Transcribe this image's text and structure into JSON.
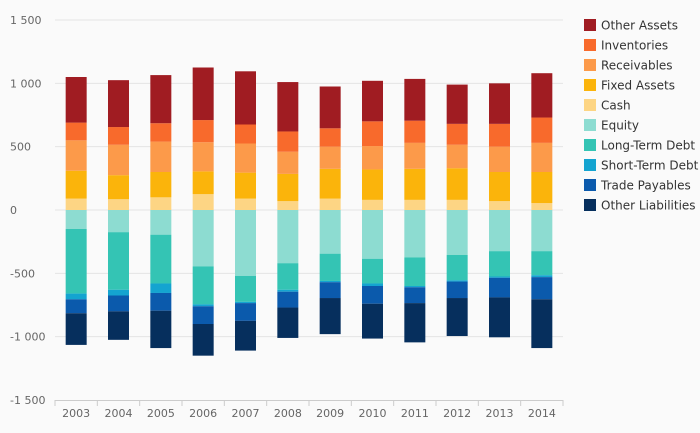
{
  "chart_data": {
    "type": "bar",
    "stacked": true,
    "categories": [
      "2003",
      "2004",
      "2005",
      "2006",
      "2007",
      "2008",
      "2009",
      "2010",
      "2011",
      "2012",
      "2013",
      "2014"
    ],
    "ylim": [
      -1500,
      1500
    ],
    "yticks": [
      -1500,
      -1000,
      -500,
      0,
      500,
      1000,
      1500
    ],
    "ytick_labels": [
      "-1 500",
      "-1 000",
      "-500",
      "0",
      "500",
      "1 000",
      "1 500"
    ],
    "grid": true,
    "legend_position": "right",
    "series": [
      {
        "name": "Other Assets",
        "color": "#a01c22",
        "side": "positive",
        "values": [
          360,
          370,
          380,
          415,
          420,
          390,
          330,
          320,
          330,
          310,
          320,
          350
        ]
      },
      {
        "name": "Inventories",
        "color": "#f86a2c",
        "side": "positive",
        "values": [
          140,
          140,
          145,
          175,
          150,
          160,
          145,
          195,
          175,
          165,
          180,
          200
        ]
      },
      {
        "name": "Receivables",
        "color": "#fc9a4a",
        "side": "positive",
        "values": [
          240,
          240,
          240,
          230,
          230,
          175,
          175,
          185,
          205,
          185,
          200,
          230
        ]
      },
      {
        "name": "Fixed Assets",
        "color": "#fbb40b",
        "side": "positive",
        "values": [
          220,
          190,
          200,
          180,
          205,
          215,
          235,
          240,
          245,
          250,
          230,
          245
        ]
      },
      {
        "name": "Cash",
        "color": "#fdd584",
        "side": "positive",
        "values": [
          90,
          85,
          100,
          125,
          90,
          70,
          90,
          80,
          80,
          80,
          70,
          55
        ]
      },
      {
        "name": "Equity",
        "color": "#8ddcd1",
        "side": "negative",
        "values": [
          150,
          175,
          195,
          445,
          520,
          420,
          345,
          385,
          375,
          355,
          325,
          325
        ]
      },
      {
        "name": "Long-Term Debt",
        "color": "#34c4b4",
        "side": "negative",
        "values": [
          510,
          455,
          385,
          300,
          205,
          210,
          215,
          195,
          225,
          200,
          200,
          190
        ]
      },
      {
        "name": "Short-Term Debt",
        "color": "#14a4d0",
        "side": "negative",
        "values": [
          45,
          45,
          75,
          15,
          10,
          15,
          10,
          20,
          10,
          10,
          10,
          15
        ]
      },
      {
        "name": "Trade Payables",
        "color": "#0b5aac",
        "side": "negative",
        "values": [
          110,
          125,
          140,
          140,
          140,
          125,
          125,
          140,
          125,
          130,
          155,
          175
        ]
      },
      {
        "name": "Other Liabilities",
        "color": "#062f5d",
        "side": "negative",
        "values": [
          250,
          225,
          295,
          250,
          235,
          240,
          285,
          275,
          310,
          300,
          315,
          385
        ]
      }
    ]
  }
}
